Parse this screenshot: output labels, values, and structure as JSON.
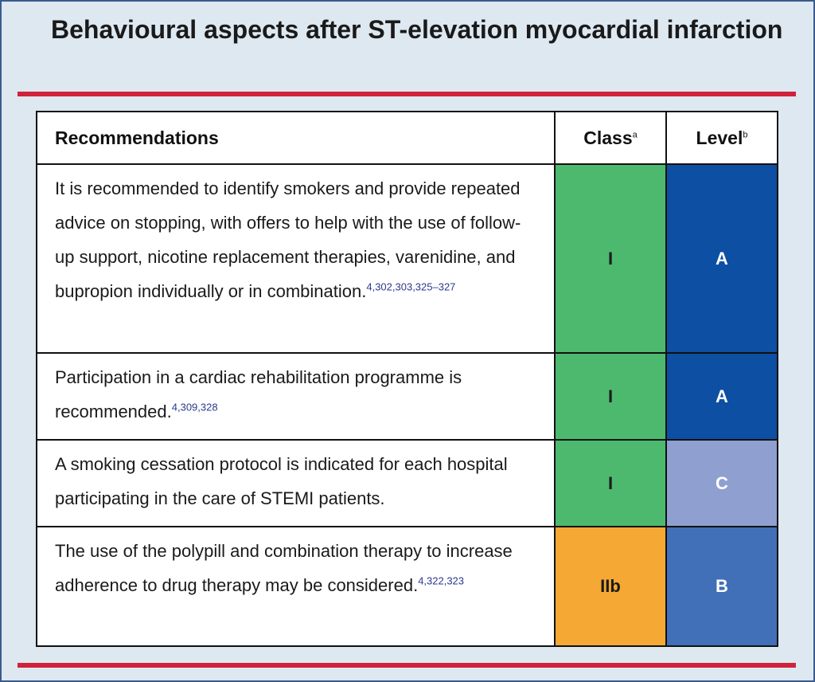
{
  "title": "Behavioural aspects after ST-elevation myocardial infarction",
  "table": {
    "headers": {
      "recommendations": "Recommendations",
      "class": "Class",
      "class_sup": "a",
      "level": "Level",
      "level_sup": "b"
    },
    "rows": [
      {
        "text": "It is recommended to identify smokers and provide repeated advice on stopping, with offers to help with the use of follow-up support, nicotine replacement therapies, varenidine, and bupropion individually or in combination.",
        "refs": "4,302,303,325–327",
        "class": "I",
        "level": "A",
        "class_color": "#4cb96f",
        "level_color": "#0d4fa3"
      },
      {
        "text": "Participation in a cardiac rehabilitation programme is recommended.",
        "refs": "4,309,328",
        "class": "I",
        "level": "A",
        "class_color": "#4cb96f",
        "level_color": "#0d4fa3"
      },
      {
        "text": "A smoking cessation protocol is indicated for each hospital participating in the care of STEMI patients.",
        "refs": "",
        "class": "I",
        "level": "C",
        "class_color": "#4cb96f",
        "level_color": "#8fa0d0"
      },
      {
        "text": "The use of the polypill and combination therapy to increase adherence to drug therapy may be considered.",
        "refs": "4,322,323",
        "class": "IIb",
        "level": "B",
        "class_color": "#f5a834",
        "level_color": "#4170b8"
      }
    ]
  }
}
